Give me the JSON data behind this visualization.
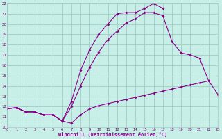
{
  "bg_color": "#c8eee8",
  "grid_color": "#a0ccc4",
  "line_color": "#880088",
  "xlabel": "Windchill (Refroidissement éolien,°C)",
  "xlim": [
    0,
    23
  ],
  "ylim": [
    10,
    22
  ],
  "xticks": [
    0,
    1,
    2,
    3,
    4,
    5,
    6,
    7,
    8,
    9,
    10,
    11,
    12,
    13,
    14,
    15,
    16,
    17,
    18,
    19,
    20,
    21,
    22,
    23
  ],
  "yticks": [
    10,
    11,
    12,
    13,
    14,
    15,
    16,
    17,
    18,
    19,
    20,
    21,
    22
  ],
  "line1": {
    "x": [
      0,
      1,
      2,
      3,
      4,
      5,
      6,
      7,
      8,
      9,
      10,
      11,
      12,
      13,
      14,
      15,
      16,
      17,
      18,
      19,
      20,
      21,
      22,
      23
    ],
    "y": [
      11.8,
      11.9,
      11.5,
      11.5,
      11.2,
      11.2,
      10.6,
      10.4,
      11.2,
      11.8,
      12.1,
      12.3,
      12.5,
      12.7,
      12.9,
      13.1,
      13.3,
      13.5,
      13.7,
      13.9,
      14.1,
      14.3,
      14.5,
      13.2
    ]
  },
  "line2": {
    "x": [
      0,
      1,
      2,
      3,
      4,
      5,
      6,
      7,
      8,
      9,
      10,
      11,
      12,
      13,
      14,
      15,
      16,
      17,
      18,
      19,
      20,
      21,
      22
    ],
    "y": [
      11.8,
      11.9,
      11.5,
      11.5,
      11.2,
      11.2,
      10.6,
      12.0,
      14.0,
      15.8,
      17.3,
      18.5,
      19.3,
      20.1,
      20.5,
      21.1,
      21.1,
      20.8,
      18.3,
      17.2,
      17.0,
      16.7,
      14.5
    ]
  },
  "line3": {
    "x": [
      0,
      1,
      2,
      3,
      4,
      5,
      6,
      7,
      8,
      9,
      10,
      11,
      12,
      13,
      14,
      15,
      16,
      17
    ],
    "y": [
      11.8,
      11.9,
      11.5,
      11.5,
      11.2,
      11.2,
      10.6,
      12.5,
      15.5,
      17.5,
      19.0,
      20.0,
      21.0,
      21.1,
      21.1,
      21.5,
      22.0,
      21.5
    ]
  }
}
